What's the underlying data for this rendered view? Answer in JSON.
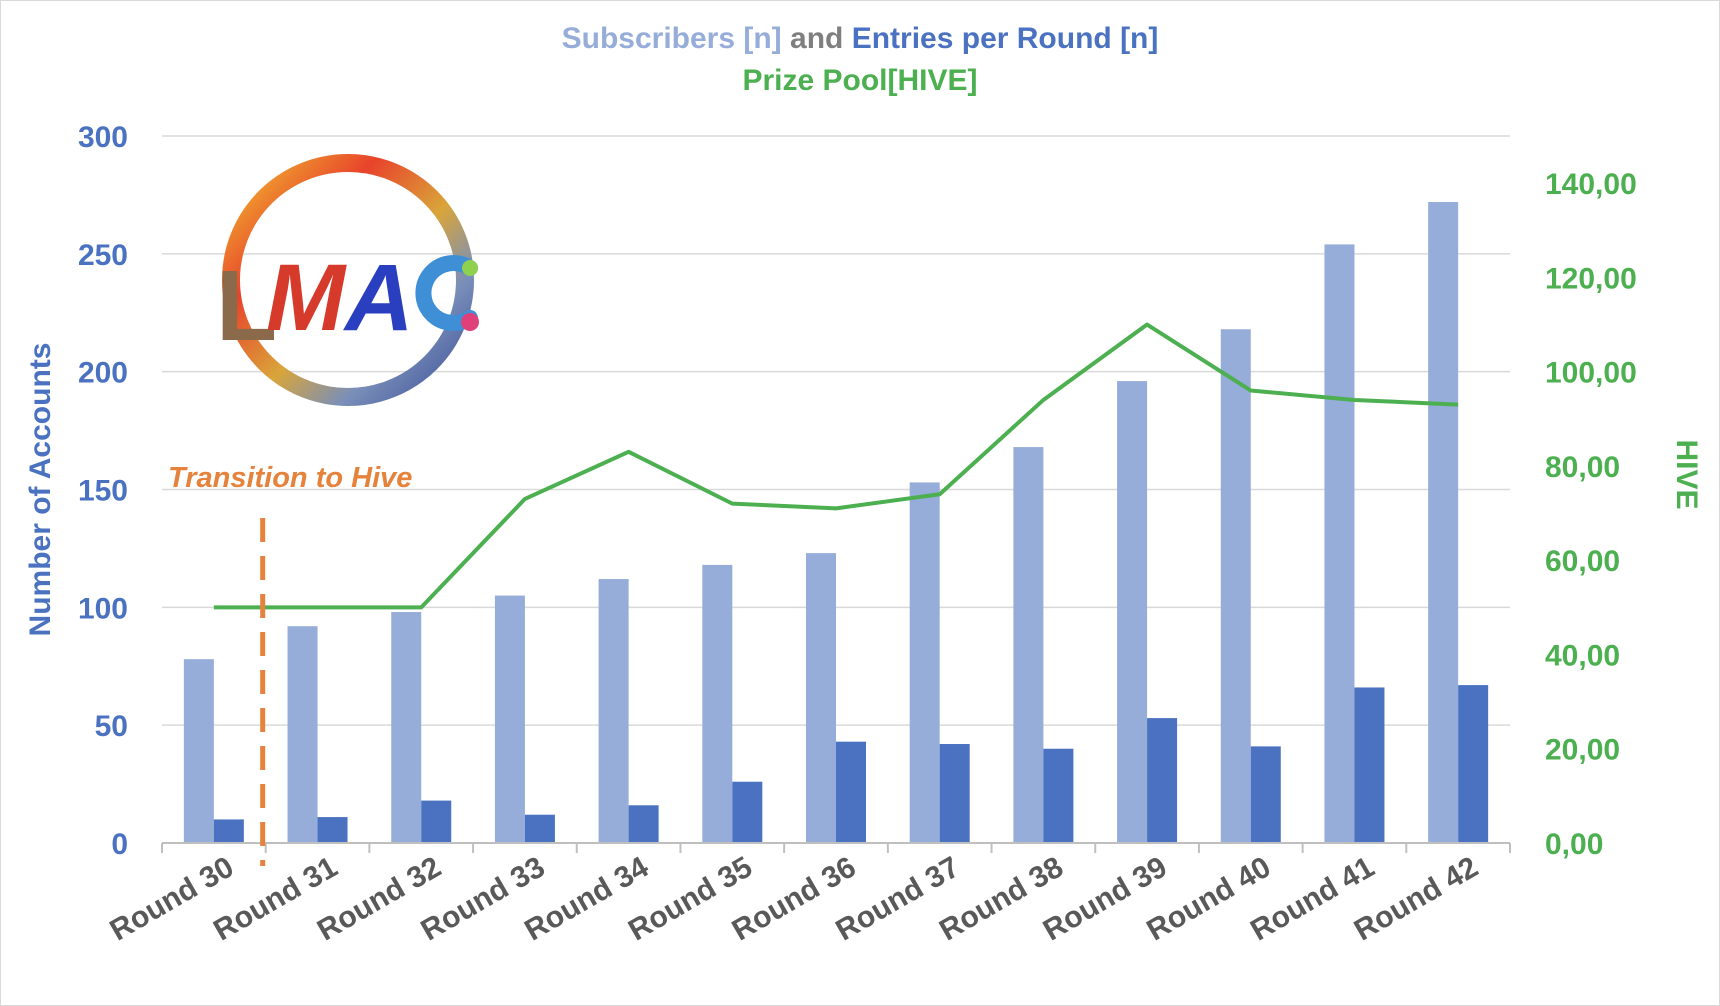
{
  "title": {
    "part1": "Subscribers [n]",
    "part2": "and",
    "part3": "Entries per Round [n]",
    "line2": "Prize Pool[HIVE]"
  },
  "colors": {
    "subscribers": "#96acd9",
    "entries": "#4a72c0",
    "prize": "#4caf50",
    "left_axis": "#4a72c0",
    "right_axis": "#4caf50",
    "transition": "#e5823c",
    "category_label": "#595959",
    "and_text": "#7f7f7f",
    "grid": "#d9d9d9"
  },
  "logo": {
    "text": "LMAC"
  },
  "annotation": {
    "text": "Transition to Hive",
    "after_category": "Round 30"
  },
  "chart_data": {
    "type": "bar",
    "categories": [
      "Round 30",
      "Round 31",
      "Round 32",
      "Round 33",
      "Round 34",
      "Round 35",
      "Round 36",
      "Round 37",
      "Round 38",
      "Round 39",
      "Round 40",
      "Round 41",
      "Round 42"
    ],
    "series": [
      {
        "name": "Subscribers [n]",
        "type": "bar",
        "axis": "left",
        "values": [
          78,
          92,
          98,
          105,
          112,
          118,
          123,
          153,
          168,
          196,
          218,
          254,
          272
        ]
      },
      {
        "name": "Entries per Round [n]",
        "type": "bar",
        "axis": "left",
        "values": [
          10,
          11,
          18,
          12,
          16,
          26,
          43,
          42,
          40,
          53,
          41,
          66,
          67
        ]
      },
      {
        "name": "Prize Pool[HIVE]",
        "type": "line",
        "axis": "right",
        "values": [
          50,
          50,
          50,
          73,
          83,
          72,
          71,
          74,
          94,
          110,
          96,
          94,
          93
        ]
      }
    ],
    "ylabel": "Number of Accounts",
    "ylim": [
      0,
      300
    ],
    "yticks": [
      "0",
      "50",
      "100",
      "150",
      "200",
      "250",
      "300"
    ],
    "y2label": "HIVE",
    "y2lim": [
      0,
      150
    ],
    "y2ticks": [
      "0,00",
      "20,00",
      "40,00",
      "60,00",
      "80,00",
      "100,00",
      "120,00",
      "140,00"
    ],
    "grid": true,
    "legend": "none"
  }
}
